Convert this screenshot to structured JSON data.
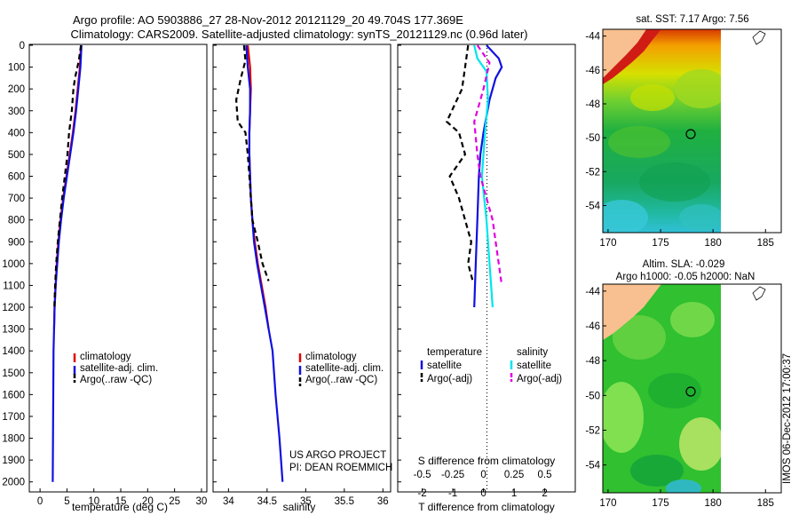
{
  "header": {
    "line1": "Argo profile: AO 5903886_27 28-Nov-2012 20121129_20 49.704S 177.369E",
    "line2": "Climatology: CARS2009. Satellite-adjusted climatology: synTS_20121129.nc (0.96d later)"
  },
  "colors": {
    "climatology": "#e00000",
    "satellite": "#1010e0",
    "argo": "#000000",
    "sat_salinity": "#00e5ee",
    "argo_salinity": "#e000e0"
  },
  "chart_data": [
    {
      "type": "line",
      "name": "temperature",
      "xlabel": "temperature (deg C)",
      "xlim": [
        -2,
        31
      ],
      "ylim": [
        0,
        2050
      ],
      "xticks": [
        0,
        5,
        10,
        15,
        20,
        25,
        30
      ],
      "yticks": [
        0,
        100,
        200,
        300,
        400,
        500,
        600,
        700,
        800,
        900,
        1000,
        1100,
        1200,
        1300,
        1400,
        1500,
        1600,
        1700,
        1800,
        1900,
        2000
      ],
      "yreversed": true,
      "legend": [
        "climatology",
        "satellite-adj. clim.",
        "Argo(..raw -QC)"
      ],
      "series": [
        {
          "name": "climatology",
          "style": "solid",
          "color": "#e00000",
          "points": [
            [
              7.6,
              0
            ],
            [
              7.4,
              100
            ],
            [
              7.0,
              200
            ],
            [
              6.6,
              300
            ],
            [
              6.1,
              400
            ],
            [
              5.5,
              500
            ],
            [
              4.9,
              600
            ],
            [
              4.3,
              700
            ],
            [
              3.8,
              800
            ],
            [
              3.4,
              900
            ],
            [
              3.1,
              1000
            ],
            [
              2.9,
              1100
            ],
            [
              2.7,
              1200
            ],
            [
              2.6,
              1300
            ]
          ]
        },
        {
          "name": "satellite",
          "style": "solid",
          "color": "#1010e0",
          "points": [
            [
              7.7,
              0
            ],
            [
              7.5,
              100
            ],
            [
              7.1,
              200
            ],
            [
              6.7,
              300
            ],
            [
              6.2,
              400
            ],
            [
              5.6,
              500
            ],
            [
              5.0,
              600
            ],
            [
              4.4,
              700
            ],
            [
              3.9,
              800
            ],
            [
              3.5,
              900
            ],
            [
              3.2,
              1000
            ],
            [
              2.9,
              1100
            ],
            [
              2.7,
              1200
            ],
            [
              2.6,
              1300
            ],
            [
              2.5,
              1400
            ],
            [
              2.45,
              1600
            ],
            [
              2.4,
              1800
            ],
            [
              2.35,
              2000
            ]
          ]
        },
        {
          "name": "argo",
          "style": "dash",
          "color": "#000000",
          "points": [
            [
              7.6,
              0
            ],
            [
              7.2,
              70
            ],
            [
              6.5,
              150
            ],
            [
              6.2,
              200
            ],
            [
              5.9,
              300
            ],
            [
              5.4,
              400
            ],
            [
              5.1,
              500
            ],
            [
              4.6,
              600
            ],
            [
              4.1,
              700
            ],
            [
              3.7,
              800
            ],
            [
              3.3,
              900
            ],
            [
              3.0,
              1000
            ],
            [
              2.8,
              1100
            ],
            [
              2.65,
              1200
            ]
          ]
        }
      ]
    },
    {
      "type": "line",
      "name": "salinity",
      "xlabel": "salinity",
      "xlim": [
        33.8,
        36.1
      ],
      "ylim": [
        0,
        2050
      ],
      "xticks": [
        34,
        34.5,
        35,
        35.5,
        36
      ],
      "yreversed": true,
      "legend": [
        "climatology",
        "satellite-adj. clim.",
        "Argo(..raw -QC)"
      ],
      "annotation": [
        "US ARGO PROJECT",
        "PI: DEAN ROEMMICH"
      ],
      "series": [
        {
          "name": "climatology",
          "style": "solid",
          "color": "#e00000",
          "points": [
            [
              34.25,
              0
            ],
            [
              34.28,
              100
            ],
            [
              34.29,
              200
            ],
            [
              34.28,
              300
            ],
            [
              34.27,
              400
            ],
            [
              34.27,
              500
            ],
            [
              34.28,
              600
            ],
            [
              34.29,
              700
            ],
            [
              34.31,
              800
            ],
            [
              34.34,
              900
            ],
            [
              34.38,
              1000
            ],
            [
              34.43,
              1100
            ],
            [
              34.48,
              1200
            ],
            [
              34.52,
              1300
            ]
          ]
        },
        {
          "name": "satellite",
          "style": "solid",
          "color": "#1010e0",
          "points": [
            [
              34.23,
              0
            ],
            [
              34.25,
              100
            ],
            [
              34.28,
              200
            ],
            [
              34.28,
              300
            ],
            [
              34.27,
              400
            ],
            [
              34.27,
              500
            ],
            [
              34.28,
              600
            ],
            [
              34.29,
              700
            ],
            [
              34.31,
              800
            ],
            [
              34.33,
              900
            ],
            [
              34.37,
              1000
            ],
            [
              34.42,
              1100
            ],
            [
              34.47,
              1200
            ],
            [
              34.52,
              1300
            ],
            [
              34.57,
              1400
            ],
            [
              34.61,
              1600
            ],
            [
              34.66,
              1800
            ],
            [
              34.7,
              2000
            ]
          ]
        },
        {
          "name": "argo",
          "style": "dash",
          "color": "#000000",
          "points": [
            [
              34.2,
              0
            ],
            [
              34.22,
              70
            ],
            [
              34.16,
              150
            ],
            [
              34.1,
              250
            ],
            [
              34.12,
              350
            ],
            [
              34.22,
              400
            ],
            [
              34.25,
              500
            ],
            [
              34.27,
              600
            ],
            [
              34.29,
              700
            ],
            [
              34.31,
              800
            ],
            [
              34.38,
              900
            ],
            [
              34.44,
              1000
            ],
            [
              34.52,
              1080
            ]
          ]
        }
      ]
    },
    {
      "type": "line",
      "name": "difference",
      "xlabel": "T difference from climatology",
      "xlabel_top": "S difference from climatology",
      "xlim": [
        -2.8,
        3
      ],
      "xticks": [
        -2,
        -1,
        0,
        1,
        2
      ],
      "sticks_pos": [
        -2,
        -1,
        0,
        1,
        2
      ],
      "sticks": [
        "-0.5",
        "-0.25",
        "0",
        "0.25",
        "0.5"
      ],
      "yreversed": true,
      "legend_left": {
        "title": "temperature",
        "items": [
          "satellite",
          "Argo(-adj)"
        ]
      },
      "legend_right": {
        "title": "salinity",
        "items": [
          "satellite",
          "Argo(-adj)"
        ]
      },
      "series": [
        {
          "name": "T satellite",
          "style": "solid",
          "color": "#1010e0",
          "points": [
            [
              0.1,
              0
            ],
            [
              0.5,
              60
            ],
            [
              0.6,
              100
            ],
            [
              0.4,
              150
            ],
            [
              0.2,
              250
            ],
            [
              0.0,
              400
            ],
            [
              -0.1,
              500
            ],
            [
              -0.15,
              600
            ],
            [
              -0.2,
              800
            ],
            [
              -0.25,
              1000
            ],
            [
              -0.3,
              1200
            ]
          ]
        },
        {
          "name": "S satellite",
          "style": "solid",
          "color": "#00e5ee",
          "points": [
            [
              -0.3,
              0
            ],
            [
              -0.2,
              60
            ],
            [
              0.1,
              120
            ],
            [
              0.15,
              250
            ],
            [
              0.05,
              400
            ],
            [
              0.0,
              500
            ],
            [
              -0.05,
              600
            ],
            [
              0.1,
              800
            ],
            [
              0.2,
              1000
            ],
            [
              0.25,
              1100
            ],
            [
              0.3,
              1200
            ]
          ]
        },
        {
          "name": "T argo",
          "style": "dash",
          "color": "#000000",
          "points": [
            [
              -0.5,
              0
            ],
            [
              -0.6,
              100
            ],
            [
              -0.7,
              200
            ],
            [
              -1.2,
              350
            ],
            [
              -0.8,
              400
            ],
            [
              -0.6,
              500
            ],
            [
              -1.1,
              600
            ],
            [
              -0.8,
              700
            ],
            [
              -0.6,
              800
            ],
            [
              -0.4,
              900
            ],
            [
              -0.5,
              1000
            ],
            [
              -0.35,
              1080
            ]
          ]
        },
        {
          "name": "S argo",
          "style": "dash",
          "color": "#e000e0",
          "points": [
            [
              -0.2,
              0
            ],
            [
              0.2,
              80
            ],
            [
              0.0,
              200
            ],
            [
              -0.3,
              350
            ],
            [
              -0.2,
              500
            ],
            [
              -0.1,
              600
            ],
            [
              0.1,
              700
            ],
            [
              0.3,
              800
            ],
            [
              0.4,
              900
            ],
            [
              0.5,
              1000
            ],
            [
              0.6,
              1100
            ]
          ]
        }
      ]
    },
    {
      "type": "heatmap",
      "name": "sst_map",
      "title": "sat. SST: 7.17  Argo: 7.56",
      "xticks": [
        170,
        175,
        180,
        185
      ],
      "yticks": [
        -44,
        -46,
        -48,
        -50,
        -52,
        -54
      ],
      "xlim": [
        169.5,
        186.5
      ],
      "ylim": [
        -55.6,
        -43.6
      ],
      "argo_position": [
        177.369,
        -49.704
      ]
    },
    {
      "type": "heatmap",
      "name": "sla_map",
      "title": "Altim. SLA: -0.029",
      "subtitle": "Argo h1000: -0.05  h2000: NaN",
      "xticks": [
        170,
        175,
        180,
        185
      ],
      "yticks": [
        -44,
        -46,
        -48,
        -50,
        -52,
        -54
      ],
      "xlim": [
        169.5,
        186.5
      ],
      "ylim": [
        -55.6,
        -43.6
      ],
      "argo_position": [
        177.369,
        -49.704
      ]
    }
  ],
  "timestamp": "IMOS 06-Dec-2012 17:00:37"
}
